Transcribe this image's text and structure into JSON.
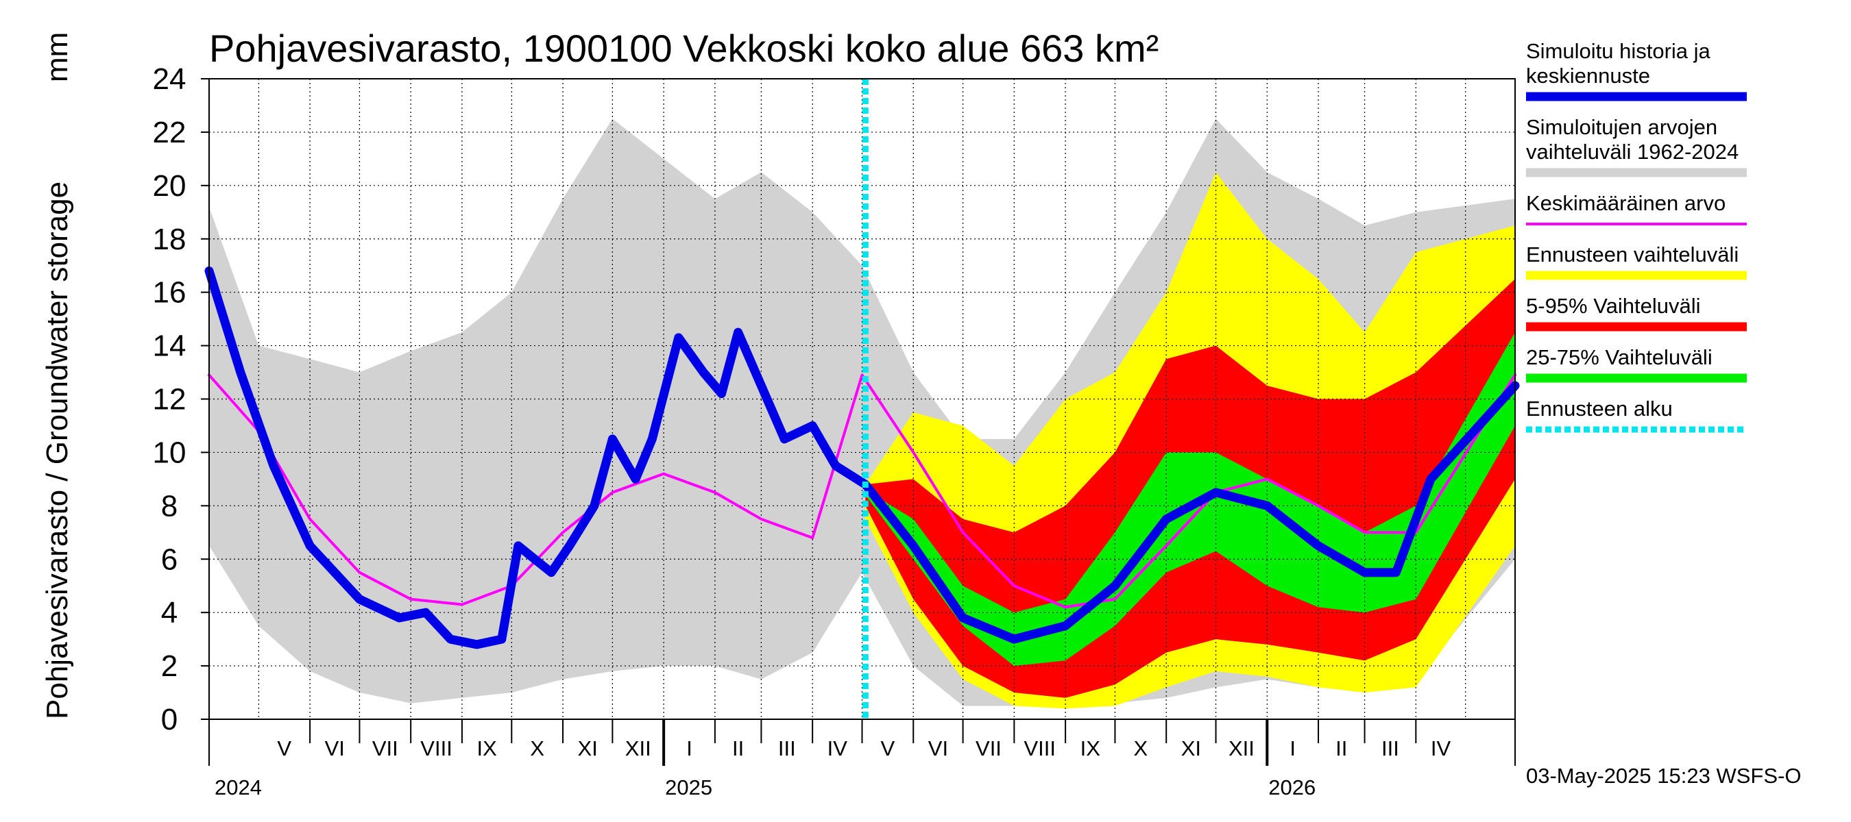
{
  "chart_data": {
    "type": "area",
    "title": "Pohjavesivarasto, 1900100 Vekkoski koko alue 663 km²",
    "ylabel": "Pohjavesivarasto / Groundwater storage",
    "yunit": "mm",
    "ylim": [
      0,
      24
    ],
    "yticks": [
      0,
      2,
      4,
      6,
      8,
      10,
      12,
      14,
      16,
      18,
      20,
      22,
      24
    ],
    "xlim": [
      "2024-04-01",
      "2026-05-31"
    ],
    "forecast_start": "2025-05-03",
    "months": [
      "V",
      "VI",
      "VII",
      "VIII",
      "IX",
      "X",
      "XI",
      "XII",
      "I",
      "II",
      "III",
      "IV",
      "V",
      "VI",
      "VII",
      "VIII",
      "IX",
      "X",
      "XI",
      "XII",
      "I",
      "II",
      "III",
      "IV"
    ],
    "years": [
      "2024",
      "2025",
      "2026"
    ],
    "grid": true,
    "legend": {
      "placement": "right",
      "items": [
        {
          "label_lines": [
            "Simuloitu historia ja",
            "keskiennuste"
          ],
          "color": "#0000e6",
          "style": "thick"
        },
        {
          "label_lines": [
            "Simuloitujen arvojen",
            "vaihteluväli 1962-2024"
          ],
          "color": "#d2d2d2",
          "style": "band"
        },
        {
          "label_lines": [
            "Keskimääräinen arvo"
          ],
          "color": "#ff00ff",
          "style": "thin"
        },
        {
          "label_lines": [
            "Ennusteen vaihteluväli"
          ],
          "color": "#ffff00",
          "style": "band"
        },
        {
          "label_lines": [
            "5-95% Vaihteluväli"
          ],
          "color": "#ff0000",
          "style": "band"
        },
        {
          "label_lines": [
            "25-75% Vaihteluväli"
          ],
          "color": "#00ee00",
          "style": "band"
        },
        {
          "label_lines": [
            "Ennusteen alku"
          ],
          "color": "#00e5ee",
          "style": "dotted"
        }
      ]
    },
    "series": [
      {
        "name": "Simuloitujen arvojen vaihteluväli 1962-2024",
        "kind": "band",
        "color": "#d2d2d2",
        "x": [
          "2024-04-01",
          "2024-05-01",
          "2024-06-01",
          "2024-07-01",
          "2024-08-01",
          "2024-09-01",
          "2024-10-01",
          "2024-11-01",
          "2024-12-01",
          "2025-01-01",
          "2025-02-01",
          "2025-03-01",
          "2025-04-01",
          "2025-05-01",
          "2025-06-01",
          "2025-07-01",
          "2025-08-01",
          "2025-09-01",
          "2025-10-01",
          "2025-11-01",
          "2025-12-01",
          "2026-01-01",
          "2026-02-01",
          "2026-03-01",
          "2026-04-01",
          "2026-05-31"
        ],
        "low": [
          6.5,
          3.5,
          1.8,
          1.0,
          0.6,
          0.8,
          1.0,
          1.5,
          1.8,
          2.0,
          2.0,
          1.5,
          2.5,
          5.5,
          2.0,
          0.5,
          0.5,
          0.5,
          0.6,
          0.8,
          1.2,
          1.5,
          1.2,
          1.0,
          1.5,
          6.0
        ],
        "high": [
          19.2,
          14.0,
          13.5,
          13.0,
          13.8,
          14.5,
          16.0,
          19.5,
          22.5,
          21.0,
          19.5,
          20.5,
          19.0,
          17.0,
          13.0,
          10.5,
          10.5,
          13.0,
          16.0,
          19.0,
          22.5,
          20.5,
          19.5,
          18.5,
          19.0,
          19.5
        ]
      },
      {
        "name": "Ennusteen vaihteluväli",
        "kind": "band",
        "color": "#ffff00",
        "x": [
          "2025-05-03",
          "2025-06-01",
          "2025-07-01",
          "2025-08-01",
          "2025-09-01",
          "2025-10-01",
          "2025-11-01",
          "2025-12-01",
          "2026-01-01",
          "2026-02-01",
          "2026-03-01",
          "2026-04-01",
          "2026-05-31"
        ],
        "low": [
          7.5,
          4.0,
          1.5,
          0.5,
          0.4,
          0.5,
          1.2,
          1.8,
          1.6,
          1.2,
          1.0,
          1.2,
          6.5
        ],
        "high": [
          8.8,
          11.5,
          11.0,
          9.5,
          12.0,
          13.0,
          16.0,
          20.5,
          18.0,
          16.5,
          14.5,
          17.5,
          18.5
        ]
      },
      {
        "name": "5-95% Vaihteluväli",
        "kind": "band",
        "color": "#ff0000",
        "x": [
          "2025-05-03",
          "2025-06-01",
          "2025-07-01",
          "2025-08-01",
          "2025-09-01",
          "2025-10-01",
          "2025-11-01",
          "2025-12-01",
          "2026-01-01",
          "2026-02-01",
          "2026-03-01",
          "2026-04-01",
          "2026-05-31"
        ],
        "low": [
          8.0,
          4.5,
          2.0,
          1.0,
          0.8,
          1.3,
          2.5,
          3.0,
          2.8,
          2.5,
          2.2,
          3.0,
          9.0
        ],
        "high": [
          8.8,
          9.0,
          7.5,
          7.0,
          8.0,
          10.0,
          13.5,
          14.0,
          12.5,
          12.0,
          12.0,
          13.0,
          16.5
        ]
      },
      {
        "name": "25-75% Vaihteluväli",
        "kind": "band",
        "color": "#00ee00",
        "x": [
          "2025-05-03",
          "2025-06-01",
          "2025-07-01",
          "2025-08-01",
          "2025-09-01",
          "2025-10-01",
          "2025-11-01",
          "2025-12-01",
          "2026-01-01",
          "2026-02-01",
          "2026-03-01",
          "2026-04-01",
          "2026-05-31"
        ],
        "low": [
          8.4,
          6.0,
          3.5,
          2.0,
          2.2,
          3.5,
          5.5,
          6.3,
          5.0,
          4.2,
          4.0,
          4.5,
          11.0
        ],
        "high": [
          8.6,
          7.5,
          5.0,
          4.0,
          4.5,
          7.0,
          10.0,
          10.0,
          9.0,
          8.0,
          7.0,
          8.0,
          14.5
        ]
      },
      {
        "name": "Keskimääräinen arvo",
        "kind": "line",
        "color": "#ff00ff",
        "x": [
          "2024-04-01",
          "2024-05-01",
          "2024-06-01",
          "2024-07-01",
          "2024-08-01",
          "2024-09-01",
          "2024-10-01",
          "2024-11-01",
          "2024-12-01",
          "2025-01-01",
          "2025-02-01",
          "2025-03-01",
          "2025-04-01",
          "2025-05-01",
          "2025-06-01",
          "2025-07-01",
          "2025-08-01",
          "2025-09-01",
          "2025-10-01",
          "2025-11-01",
          "2025-12-01",
          "2026-01-01",
          "2026-02-01",
          "2026-03-01",
          "2026-04-01",
          "2026-05-31"
        ],
        "values": [
          12.9,
          10.8,
          7.5,
          5.5,
          4.5,
          4.3,
          5.0,
          7.0,
          8.5,
          9.2,
          8.5,
          7.5,
          6.8,
          12.9,
          10.0,
          7.0,
          5.0,
          4.2,
          4.5,
          6.5,
          8.5,
          9.0,
          8.0,
          7.0,
          7.0,
          12.9
        ]
      },
      {
        "name": "Simuloitu historia ja keskiennuste",
        "kind": "line",
        "color": "#0000e6",
        "x": [
          "2024-04-01",
          "2024-04-20",
          "2024-05-10",
          "2024-06-01",
          "2024-07-01",
          "2024-07-25",
          "2024-08-10",
          "2024-08-25",
          "2024-09-10",
          "2024-09-25",
          "2024-10-05",
          "2024-10-15",
          "2024-10-25",
          "2024-11-05",
          "2024-11-20",
          "2024-12-01",
          "2024-12-15",
          "2024-12-25",
          "2025-01-10",
          "2025-01-25",
          "2025-02-05",
          "2025-02-15",
          "2025-03-01",
          "2025-03-15",
          "2025-04-01",
          "2025-04-15",
          "2025-05-03",
          "2025-06-01",
          "2025-07-01",
          "2025-08-01",
          "2025-09-01",
          "2025-10-01",
          "2025-11-01",
          "2025-12-01",
          "2026-01-01",
          "2026-02-01",
          "2026-03-01",
          "2026-03-20",
          "2026-04-10",
          "2026-05-31"
        ],
        "values": [
          16.8,
          13.0,
          9.5,
          6.5,
          4.5,
          3.8,
          4.0,
          3.0,
          2.8,
          3.0,
          6.5,
          6.0,
          5.5,
          6.5,
          8.0,
          10.5,
          9.0,
          10.5,
          14.3,
          13.0,
          12.2,
          14.5,
          12.5,
          10.5,
          11.0,
          9.5,
          8.8,
          6.5,
          3.8,
          3.0,
          3.5,
          5.0,
          7.5,
          8.5,
          8.0,
          6.5,
          5.5,
          5.5,
          9.0,
          12.5
        ]
      }
    ]
  },
  "footer": {
    "timestamp": "03-May-2025 15:23 WSFS-O"
  }
}
